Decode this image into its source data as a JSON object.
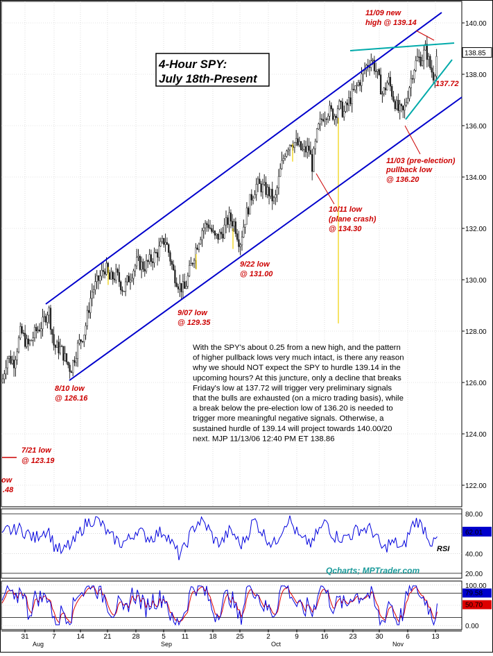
{
  "chart_data": {
    "type": "candlestick",
    "title_line1": "4-Hour SPY:",
    "title_line2": "July 18th-Present",
    "price_ylim": [
      121,
      140.5
    ],
    "price_ticks": [
      "140.00",
      "138.00",
      "136.00",
      "134.00",
      "132.00",
      "130.00",
      "128.00",
      "126.00",
      "124.00",
      "122.00"
    ],
    "last_price_label": "138.85",
    "x_ticks": [
      "31",
      "7",
      "14",
      "21",
      "28",
      "5",
      "11",
      "18",
      "25",
      "2",
      "9",
      "16",
      "23",
      "30",
      "6",
      "13"
    ],
    "x_months": [
      "Aug",
      "Sep",
      "Oct",
      "Nov"
    ],
    "trend_channel": {
      "upper": [
        [
          0.0,
          129.4
        ],
        [
          1.0,
          140.5
        ]
      ],
      "lower": [
        [
          0.0,
          126.1
        ],
        [
          1.0,
          137.1
        ]
      ]
    },
    "annotations": [
      {
        "line1": "11/09 new",
        "line2": "high @ 139.14"
      },
      {
        "line1": "137.72",
        "line2": ""
      },
      {
        "line1": "11/03 (pre-election)",
        "line2": "pullback low",
        "line3": "@ 136.20"
      },
      {
        "line1": "10/11 low",
        "line2": "(plane crash)",
        "line3": "@ 134.30"
      },
      {
        "line1": "9/22 low",
        "line2": "@ 131.00"
      },
      {
        "line1": "9/07 low",
        "line2": "@ 129.35"
      },
      {
        "line1": "8/10 low",
        "line2": "@ 126.16"
      },
      {
        "line1": "7/21 low",
        "line2": "@ 123.19"
      },
      {
        "line1": "ow",
        "line2": ".48"
      }
    ],
    "commentary": [
      "With the SPY's about 0.25 from a new high, and the pattern",
      "of higher pullback lows very much intact, is there any reason",
      "why we should NOT expect the SPY to hurdle 139.14 in the",
      "upcoming hours? At this juncture, only a decline that breaks",
      "Friday's low at 137.72 will trigger very preliminary signals",
      "that the bulls are exhausted (on a micro trading basis), while",
      "a break below the pre-election low of 136.20 is needed to",
      "trigger more meaningful negative signals. Otherwise, a",
      "sustained hurdle of 139.14 will project towards 140.00/20",
      "next.  MJP  11/13/06 12:40 PM ET  138.86"
    ],
    "rsi": {
      "label": "RSI",
      "ticks": [
        "80.00",
        "60.00",
        "40.00",
        "20.00"
      ],
      "last_value": "62.01",
      "ylim": [
        15,
        85
      ]
    },
    "stochastic": {
      "ticks": [
        "100.00",
        "50.00",
        "0.00"
      ],
      "last_values": [
        "79.58",
        "50.70"
      ],
      "ylim": [
        -10,
        110
      ]
    },
    "watermark": "Qcharts; MPTrader.com"
  }
}
